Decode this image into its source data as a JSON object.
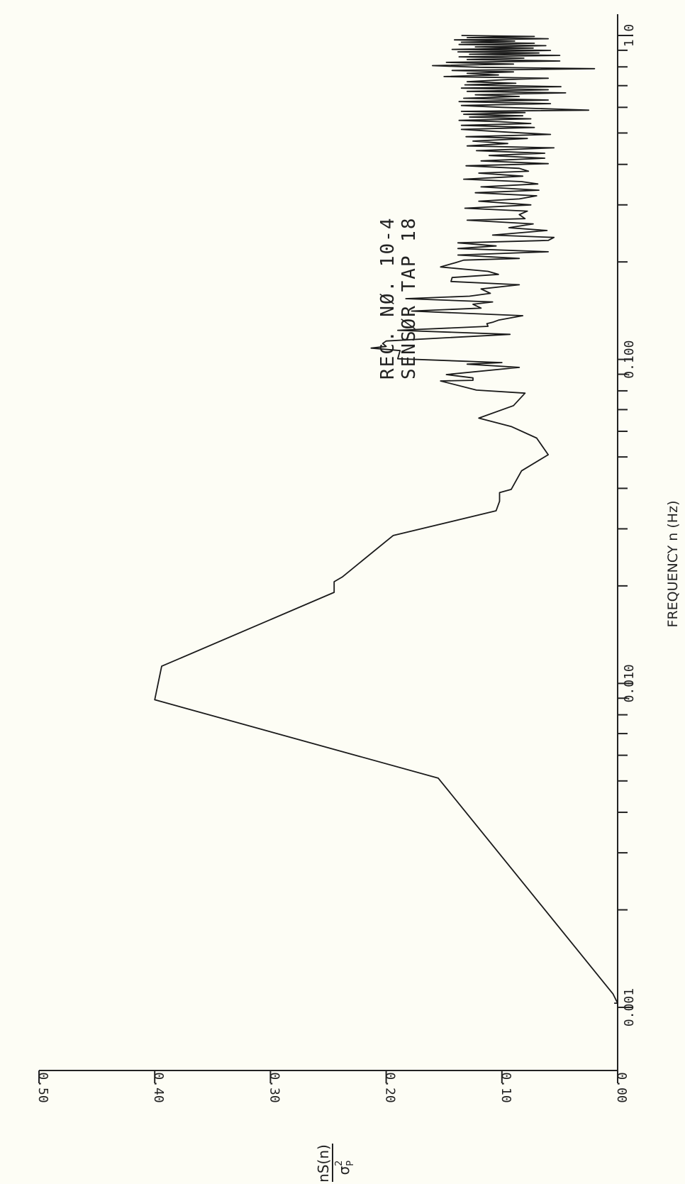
{
  "chart_data": {
    "type": "line",
    "title_lines": [
      "REC. NØ. 10-4",
      "SENSØR  TAP 18"
    ],
    "xlabel": "FREQUENCY n (Hz)",
    "ylabel": {
      "numerator": "nS(n)",
      "denominator": "σ",
      "sup": "2",
      "sub": "P"
    },
    "x_scale": "log",
    "xlim": [
      0.001,
      1.0
    ],
    "ylim": [
      0.0,
      0.5
    ],
    "x_ticks": [
      {
        "value": 0.001,
        "label": "0.001"
      },
      {
        "value": 0.01,
        "label": "0.010"
      },
      {
        "value": 0.1,
        "label": "0.100"
      },
      {
        "value": 1.0,
        "label": "1.0"
      }
    ],
    "y_ticks": [
      {
        "value": 0.0,
        "label": "0.00"
      },
      {
        "value": 0.1,
        "label": "0.10"
      },
      {
        "value": 0.2,
        "label": "0.20"
      },
      {
        "value": 0.3,
        "label": "0.30"
      },
      {
        "value": 0.4,
        "label": "0.40"
      },
      {
        "value": 0.5,
        "label": "0.50"
      }
    ],
    "grid": false,
    "series": [
      {
        "points": [
          [
            0.00103,
            0.003
          ],
          [
            0.00103,
            0.0
          ],
          [
            0.0011,
            0.004
          ],
          [
            0.0051,
            0.155
          ],
          [
            0.0089,
            0.4
          ],
          [
            0.0113,
            0.394
          ],
          [
            0.0191,
            0.245
          ],
          [
            0.0206,
            0.245
          ],
          [
            0.0213,
            0.238
          ],
          [
            0.0286,
            0.194
          ],
          [
            0.0341,
            0.105
          ],
          [
            0.0365,
            0.102
          ],
          [
            0.0388,
            0.102
          ],
          [
            0.0397,
            0.092
          ],
          [
            0.0453,
            0.083
          ],
          [
            0.0508,
            0.06
          ],
          [
            0.0572,
            0.07
          ],
          [
            0.0621,
            0.092
          ],
          [
            0.0659,
            0.12
          ],
          [
            0.072,
            0.09
          ],
          [
            0.0787,
            0.08
          ],
          [
            0.0804,
            0.122
          ],
          [
            0.0858,
            0.153
          ],
          [
            0.0862,
            0.125
          ],
          [
            0.0877,
            0.125
          ],
          [
            0.0898,
            0.148
          ],
          [
            0.0945,
            0.085
          ],
          [
            0.0967,
            0.13
          ],
          [
            0.0978,
            0.1
          ],
          [
            0.1005,
            0.19
          ],
          [
            0.1065,
            0.188
          ],
          [
            0.1084,
            0.213
          ],
          [
            0.1097,
            0.2
          ],
          [
            0.112,
            0.203
          ],
          [
            0.114,
            0.2
          ],
          [
            0.1195,
            0.093
          ],
          [
            0.123,
            0.19
          ],
          [
            0.1265,
            0.112
          ],
          [
            0.129,
            0.113
          ],
          [
            0.1302,
            0.108
          ],
          [
            0.1322,
            0.103
          ],
          [
            0.1365,
            0.082
          ],
          [
            0.141,
            0.178
          ],
          [
            0.144,
            0.118
          ],
          [
            0.148,
            0.125
          ],
          [
            0.1505,
            0.108
          ],
          [
            0.154,
            0.183
          ],
          [
            0.1568,
            0.128
          ],
          [
            0.16,
            0.11
          ],
          [
            0.165,
            0.118
          ],
          [
            0.17,
            0.085
          ],
          [
            0.174,
            0.144
          ],
          [
            0.179,
            0.143
          ],
          [
            0.183,
            0.103
          ],
          [
            0.187,
            0.112
          ],
          [
            0.191,
            0.14
          ],
          [
            0.193,
            0.153
          ],
          [
            0.199,
            0.14
          ],
          [
            0.2025,
            0.133
          ],
          [
            0.205,
            0.085
          ],
          [
            0.21,
            0.138
          ],
          [
            0.215,
            0.06
          ],
          [
            0.22,
            0.138
          ],
          [
            0.224,
            0.105
          ],
          [
            0.229,
            0.138
          ],
          [
            0.233,
            0.06
          ],
          [
            0.238,
            0.055
          ],
          [
            0.242,
            0.108
          ],
          [
            0.25,
            0.061
          ],
          [
            0.255,
            0.094
          ],
          [
            0.262,
            0.073
          ],
          [
            0.269,
            0.13
          ],
          [
            0.272,
            0.08
          ],
          [
            0.28,
            0.085
          ],
          [
            0.287,
            0.078
          ],
          [
            0.293,
            0.132
          ],
          [
            0.3,
            0.075
          ],
          [
            0.308,
            0.12
          ],
          [
            0.313,
            0.085
          ],
          [
            0.32,
            0.07
          ],
          [
            0.327,
            0.123
          ],
          [
            0.333,
            0.068
          ],
          [
            0.341,
            0.118
          ],
          [
            0.348,
            0.069
          ],
          [
            0.354,
            0.083
          ],
          [
            0.36,
            0.133
          ],
          [
            0.368,
            0.082
          ],
          [
            0.376,
            0.12
          ],
          [
            0.381,
            0.077
          ],
          [
            0.389,
            0.085
          ],
          [
            0.396,
            0.131
          ],
          [
            0.402,
            0.06
          ],
          [
            0.41,
            0.118
          ],
          [
            0.418,
            0.063
          ],
          [
            0.426,
            0.111
          ],
          [
            0.433,
            0.063
          ],
          [
            0.441,
            0.122
          ],
          [
            0.45,
            0.055
          ],
          [
            0.456,
            0.13
          ],
          [
            0.464,
            0.095
          ],
          [
            0.472,
            0.125
          ],
          [
            0.481,
            0.078
          ],
          [
            0.487,
            0.131
          ],
          [
            0.495,
            0.058
          ],
          [
            0.503,
            0.095
          ],
          [
            0.513,
            0.135
          ],
          [
            0.52,
            0.072
          ],
          [
            0.528,
            0.135
          ],
          [
            0.535,
            0.075
          ],
          [
            0.542,
            0.103
          ],
          [
            0.547,
            0.137
          ],
          [
            0.553,
            0.075
          ],
          [
            0.56,
            0.128
          ],
          [
            0.565,
            0.082
          ],
          [
            0.571,
            0.133
          ],
          [
            0.578,
            0.08
          ],
          [
            0.583,
            0.135
          ],
          [
            0.588,
            0.025
          ],
          [
            0.6,
            0.1
          ],
          [
            0.608,
            0.135
          ],
          [
            0.616,
            0.058
          ],
          [
            0.625,
            0.137
          ],
          [
            0.632,
            0.06
          ],
          [
            0.64,
            0.133
          ],
          [
            0.648,
            0.085
          ],
          [
            0.656,
            0.123
          ],
          [
            0.665,
            0.045
          ],
          [
            0.672,
            0.13
          ],
          [
            0.68,
            0.06
          ],
          [
            0.688,
            0.135
          ],
          [
            0.695,
            0.049
          ],
          [
            0.704,
            0.132
          ],
          [
            0.712,
            0.088
          ],
          [
            0.72,
            0.13
          ],
          [
            0.731,
            0.095
          ],
          [
            0.738,
            0.06
          ],
          [
            0.747,
            0.15
          ],
          [
            0.755,
            0.103
          ],
          [
            0.764,
            0.13
          ],
          [
            0.772,
            0.09
          ],
          [
            0.78,
            0.143
          ],
          [
            0.79,
            0.02
          ],
          [
            0.798,
            0.12
          ],
          [
            0.807,
            0.16
          ],
          [
            0.816,
            0.09
          ],
          [
            0.826,
            0.148
          ],
          [
            0.834,
            0.05
          ],
          [
            0.843,
            0.13
          ],
          [
            0.851,
            0.081
          ],
          [
            0.859,
            0.137
          ],
          [
            0.868,
            0.05
          ],
          [
            0.875,
            0.128
          ],
          [
            0.883,
            0.068
          ],
          [
            0.89,
            0.138
          ],
          [
            0.899,
            0.058
          ],
          [
            0.906,
            0.143
          ],
          [
            0.914,
            0.073
          ],
          [
            0.922,
            0.123
          ],
          [
            0.93,
            0.062
          ],
          [
            0.938,
            0.137
          ],
          [
            0.946,
            0.072
          ],
          [
            0.953,
            0.135
          ],
          [
            0.961,
            0.089
          ],
          [
            0.969,
            0.141
          ],
          [
            0.977,
            0.06
          ],
          [
            0.985,
            0.13
          ],
          [
            0.993,
            0.072
          ],
          [
            1.0,
            0.135
          ]
        ]
      }
    ]
  }
}
